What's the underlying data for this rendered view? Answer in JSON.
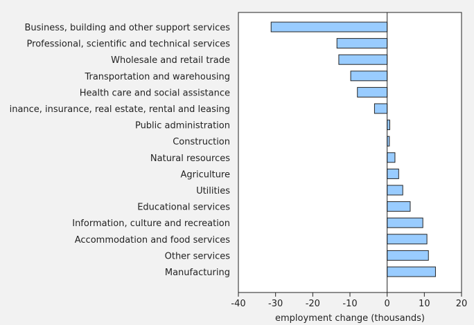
{
  "chart_data": {
    "type": "bar",
    "orientation": "horizontal",
    "title": "",
    "xlabel": "employment change (thousands)",
    "ylabel": "",
    "xlim": [
      -40,
      20
    ],
    "xticks": [
      -40,
      -30,
      -20,
      -10,
      0,
      10,
      20
    ],
    "grid": false,
    "legend": "none",
    "bar_color": "#99ccff",
    "categories": [
      "Business, building and other support services",
      "Professional, scientific and technical services",
      "Wholesale and retail trade",
      "Transportation and warehousing",
      "Health care and social assistance",
      "inance, insurance, real estate, rental and leasing",
      "Public administration",
      "Construction",
      "Natural resources",
      "Agriculture",
      "Utilities",
      "Educational services",
      "Information, culture and recreation",
      "Accommodation and food services",
      "Other services",
      "Manufacturing"
    ],
    "values": [
      -31.2,
      -13.5,
      -13.0,
      -9.8,
      -8.0,
      -3.4,
      0.7,
      0.6,
      2.1,
      3.1,
      4.2,
      6.2,
      9.6,
      10.7,
      11.1,
      13.0
    ]
  }
}
